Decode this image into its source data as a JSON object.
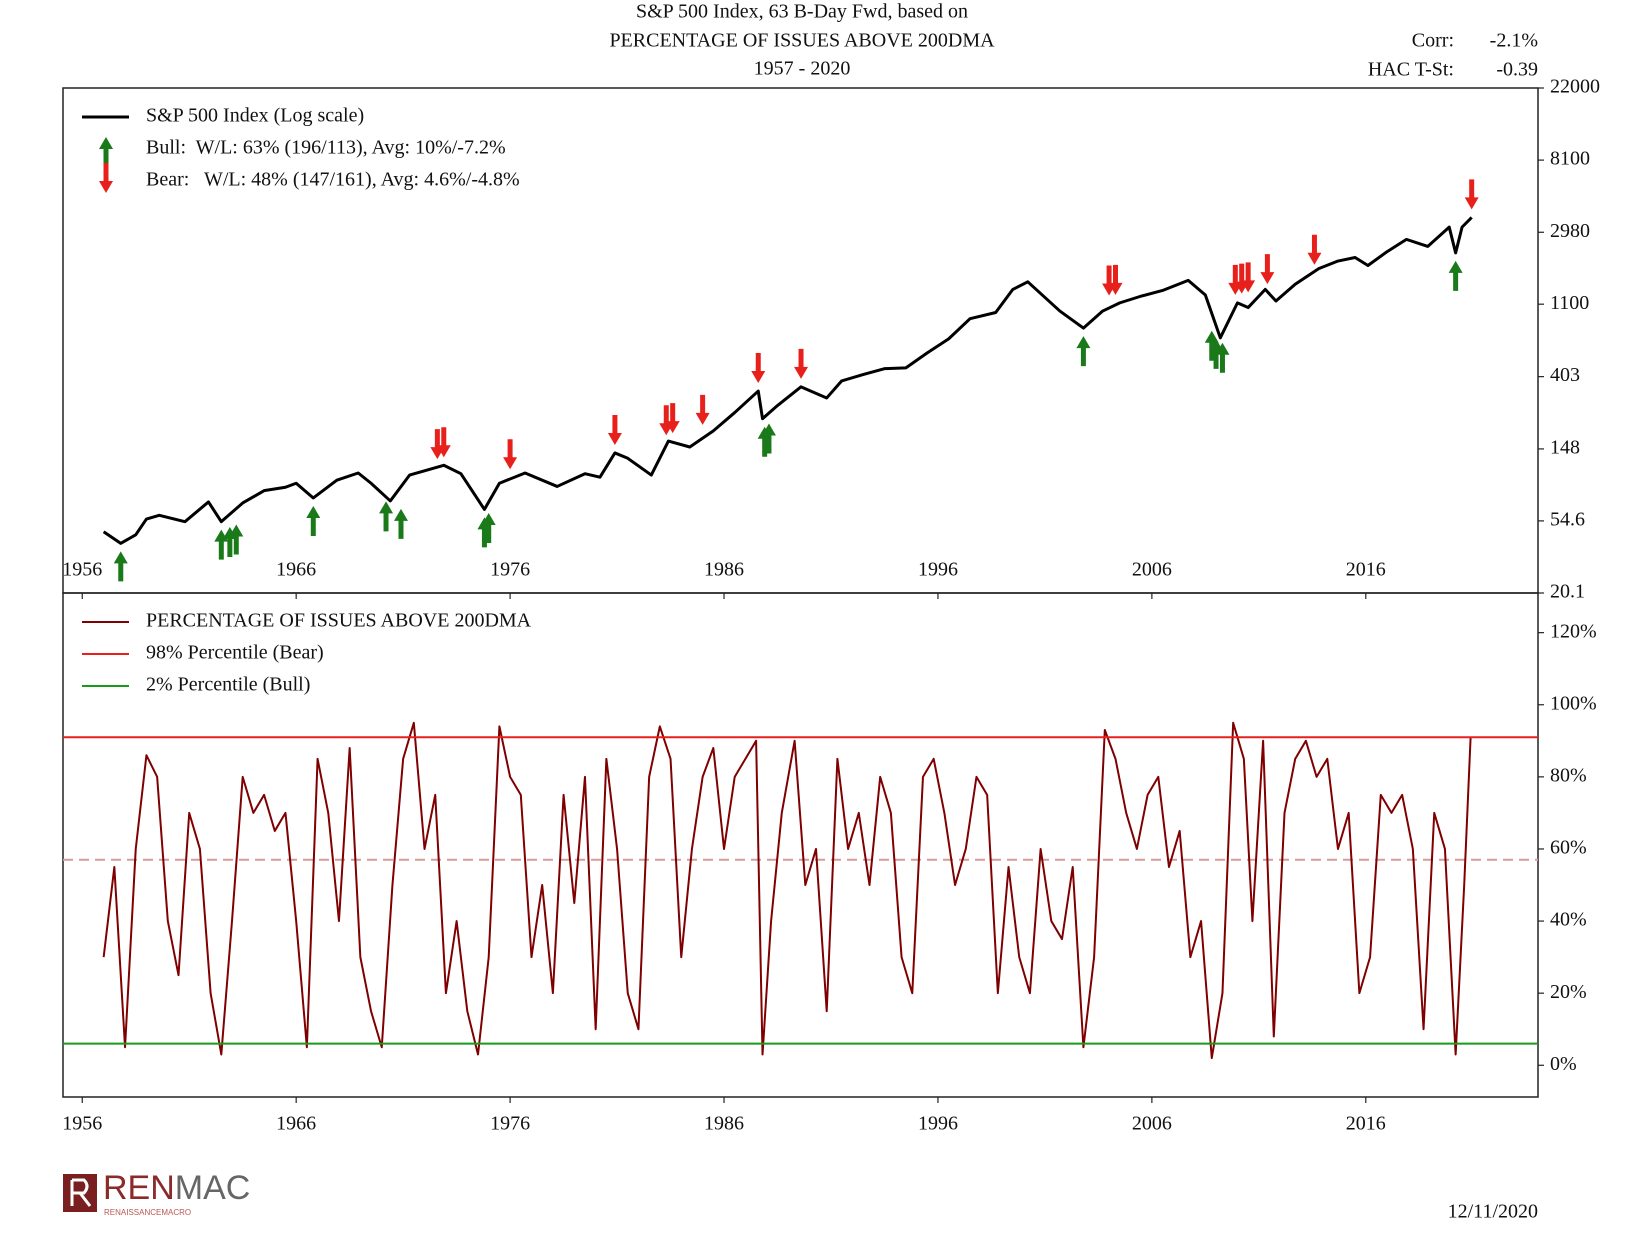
{
  "chart_data": [
    {
      "type": "line",
      "title": "S&P 500 Index, 63 B-Day Fwd, based on",
      "subtitle": "PERCENTAGE OF ISSUES ABOVE 200DMA",
      "period": "1957 - 2020",
      "stats": [
        {
          "label": "Corr:",
          "value": "-2.1%"
        },
        {
          "label": "HAC T-St:",
          "value": "-0.39"
        }
      ],
      "log_y": true,
      "xlim": [
        1955.1,
        2024.05
      ],
      "xticks": [
        1956,
        1966,
        1976,
        1986,
        1996,
        2006,
        2016
      ],
      "xtick_labels": "inside",
      "ylim": [
        20.1,
        22000
      ],
      "yticks": [
        20.1,
        54.6,
        148,
        403,
        1100,
        2980,
        8100,
        22000
      ],
      "legend": "upper left",
      "series": [
        {
          "name": "S&P 500 Index (Log scale)",
          "type": "line",
          "color": "#000000",
          "x": [
            1957.0,
            1957.8,
            1958.5,
            1959.0,
            1959.6,
            1960.8,
            1961.9,
            1962.5,
            1963.5,
            1964.5,
            1965.5,
            1966.0,
            1966.8,
            1967.9,
            1968.9,
            1969.5,
            1970.4,
            1971.3,
            1972.9,
            1973.7,
            1974.8,
            1975.5,
            1976.7,
            1978.2,
            1979.5,
            1980.2,
            1980.9,
            1981.5,
            1982.6,
            1983.4,
            1984.4,
            1985.5,
            1986.5,
            1987.6,
            1987.8,
            1988.5,
            1989.6,
            1990.8,
            1991.5,
            1992.5,
            1993.5,
            1994.5,
            1995.5,
            1996.5,
            1997.5,
            1998.7,
            1999.5,
            2000.2,
            2001.7,
            2002.8,
            2003.7,
            2004.5,
            2005.5,
            2006.5,
            2007.7,
            2008.5,
            2009.2,
            2010.0,
            2010.5,
            2011.3,
            2011.8,
            2012.7,
            2013.8,
            2014.7,
            2015.5,
            2016.1,
            2017.0,
            2017.9,
            2018.9,
            2019.9,
            2020.2,
            2020.5,
            2020.95
          ],
          "values": [
            47,
            40,
            45,
            56,
            59,
            54,
            71,
            54,
            70,
            83,
            87,
            92,
            75,
            96,
            106,
            92,
            72,
            103,
            118,
            105,
            64,
            92,
            106,
            88,
            105,
            100,
            140,
            130,
            103,
            165,
            152,
            190,
            245,
            330,
            225,
            270,
            350,
            300,
            380,
            415,
            450,
            455,
            560,
            680,
            900,
            980,
            1350,
            1500,
            1000,
            790,
            1000,
            1120,
            1230,
            1330,
            1530,
            1250,
            690,
            1120,
            1050,
            1350,
            1150,
            1450,
            1800,
            2000,
            2100,
            1880,
            2280,
            2700,
            2450,
            3200,
            2240,
            3200,
            3660
          ]
        },
        {
          "name": "Bull:  W/L: 63% (196/113), Avg: 10%/-7.2%",
          "type": "arrow-up",
          "color": "#1a7a1a",
          "x": [
            1957.8,
            1962.5,
            1962.9,
            1963.2,
            1966.8,
            1970.2,
            1970.9,
            1974.8,
            1975.0,
            1987.9,
            1988.1,
            2002.8,
            2008.8,
            2009.0,
            2009.3,
            2020.2
          ],
          "values": [
            40,
            54,
            56,
            58,
            75,
            80,
            72,
            64,
            68,
            225,
            235,
            790,
            850,
            760,
            720,
            2240
          ]
        },
        {
          "name": "Bear:   W/L: 48% (147/161), Avg: 4.6%/-4.8%",
          "type": "arrow-down",
          "color": "#e8201c",
          "x": [
            1972.6,
            1972.9,
            1976.0,
            1980.9,
            1983.3,
            1983.6,
            1985.0,
            1987.6,
            1989.6,
            2004.0,
            2004.3,
            2009.9,
            2010.2,
            2010.5,
            2011.4,
            2013.6,
            2020.95
          ],
          "values": [
            115,
            118,
            100,
            140,
            160,
            165,
            185,
            330,
            350,
            1110,
            1120,
            1120,
            1140,
            1160,
            1300,
            1700,
            3660
          ]
        }
      ]
    },
    {
      "type": "line",
      "log_y": false,
      "xlim": [
        1955.1,
        2024.05
      ],
      "xticks": [
        1956,
        1966,
        1976,
        1986,
        1996,
        2006,
        2016
      ],
      "xtick_labels": "outside",
      "ylim": [
        -8.8,
        131
      ],
      "yticks": [
        {
          "value": 0,
          "label": "0%"
        },
        {
          "value": 20,
          "label": "20%"
        },
        {
          "value": 40,
          "label": "40%"
        },
        {
          "value": 60,
          "label": "60%"
        },
        {
          "value": 80,
          "label": "80%"
        },
        {
          "value": 100,
          "label": "100%"
        },
        {
          "value": 120,
          "label": "120%"
        }
      ],
      "legend": "upper left",
      "reference_lines": [
        {
          "value": 57,
          "color": "#d99a9a",
          "style": "dashed"
        }
      ],
      "series": [
        {
          "name": "PERCENTAGE OF ISSUES ABOVE 200DMA",
          "type": "line",
          "color": "#7f0000",
          "x": [
            1957.0,
            1957.5,
            1958.0,
            1958.5,
            1959.0,
            1959.5,
            1960.0,
            1960.5,
            1961.0,
            1961.5,
            1962.0,
            1962.5,
            1963.0,
            1963.5,
            1964.0,
            1964.5,
            1965.0,
            1965.5,
            1966.0,
            1966.5,
            1967.0,
            1967.5,
            1968.0,
            1968.5,
            1969.0,
            1969.5,
            1970.0,
            1970.5,
            1971.0,
            1971.5,
            1972.0,
            1972.5,
            1973.0,
            1973.5,
            1974.0,
            1974.5,
            1975.0,
            1975.5,
            1976.0,
            1976.5,
            1977.0,
            1977.5,
            1978.0,
            1978.5,
            1979.0,
            1979.5,
            1980.0,
            1980.5,
            1981.0,
            1981.5,
            1982.0,
            1982.5,
            1983.0,
            1983.5,
            1984.0,
            1984.5,
            1985.0,
            1985.5,
            1986.0,
            1986.5,
            1987.0,
            1987.5,
            1987.8,
            1988.2,
            1988.7,
            1989.3,
            1989.8,
            1990.3,
            1990.8,
            1991.3,
            1991.8,
            1992.3,
            1992.8,
            1993.3,
            1993.8,
            1994.3,
            1994.8,
            1995.3,
            1995.8,
            1996.3,
            1996.8,
            1997.3,
            1997.8,
            1998.3,
            1998.8,
            1999.3,
            1999.8,
            2000.3,
            2000.8,
            2001.3,
            2001.8,
            2002.3,
            2002.8,
            2003.3,
            2003.8,
            2004.3,
            2004.8,
            2005.3,
            2005.8,
            2006.3,
            2006.8,
            2007.3,
            2007.8,
            2008.3,
            2008.8,
            2009.3,
            2009.8,
            2010.3,
            2010.7,
            2011.2,
            2011.7,
            2012.2,
            2012.7,
            2013.2,
            2013.7,
            2014.2,
            2014.7,
            2015.2,
            2015.7,
            2016.2,
            2016.7,
            2017.2,
            2017.7,
            2018.2,
            2018.7,
            2019.2,
            2019.7,
            2020.2,
            2020.6,
            2020.9
          ],
          "values": [
            30,
            55,
            5,
            60,
            86,
            80,
            40,
            25,
            70,
            60,
            20,
            3,
            40,
            80,
            70,
            75,
            65,
            70,
            40,
            5,
            85,
            70,
            40,
            88,
            30,
            15,
            5,
            50,
            85,
            95,
            60,
            75,
            20,
            40,
            15,
            3,
            30,
            94,
            80,
            75,
            30,
            50,
            20,
            75,
            45,
            80,
            10,
            85,
            60,
            20,
            10,
            80,
            94,
            85,
            30,
            60,
            80,
            88,
            60,
            80,
            85,
            90,
            3,
            40,
            70,
            90,
            50,
            60,
            15,
            85,
            60,
            70,
            50,
            80,
            70,
            30,
            20,
            80,
            85,
            70,
            50,
            60,
            80,
            75,
            20,
            55,
            30,
            20,
            60,
            40,
            35,
            55,
            5,
            30,
            93,
            85,
            70,
            60,
            75,
            80,
            55,
            65,
            30,
            40,
            2,
            20,
            95,
            85,
            40,
            90,
            8,
            70,
            85,
            90,
            80,
            85,
            60,
            70,
            20,
            30,
            75,
            70,
            75,
            60,
            10,
            70,
            60,
            3,
            50,
            91
          ]
        },
        {
          "name": "98% Percentile (Bear)",
          "type": "hline",
          "color": "#e8201c",
          "values": [
            91
          ]
        },
        {
          "name": "2% Percentile (Bull)",
          "type": "hline",
          "color": "#1a9a1a",
          "values": [
            6
          ]
        }
      ]
    }
  ],
  "footer": {
    "logo_parts": [
      "REN",
      "MAC"
    ],
    "logo_tagline": "RENAISSANCEMACRO",
    "date": "12/11/2020"
  }
}
